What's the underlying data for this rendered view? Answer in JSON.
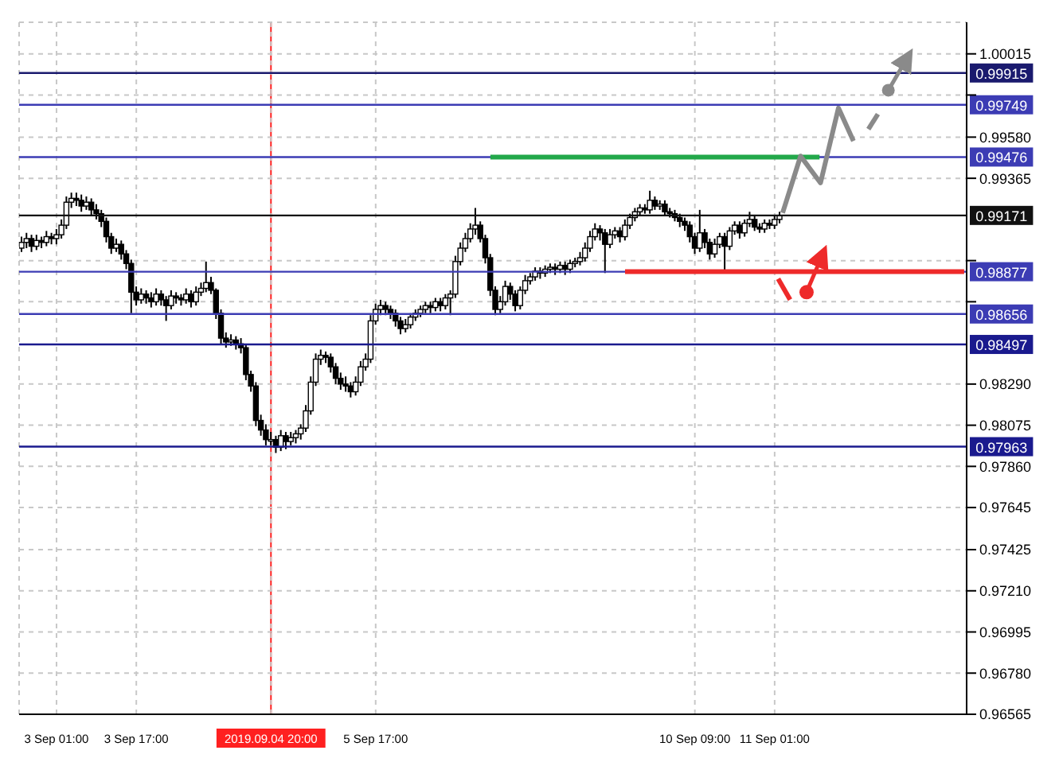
{
  "chart_data": {
    "type": "candlestick",
    "categories": [
      null,
      null,
      null,
      null,
      null,
      null,
      null,
      "3 Sep 01:00",
      null,
      null,
      null,
      null,
      null,
      null,
      null,
      null,
      null,
      null,
      null,
      null,
      null,
      null,
      null,
      "3 Sep 17:00",
      null,
      null,
      null,
      null,
      null,
      null,
      null,
      null,
      null,
      null,
      null,
      null,
      null,
      null,
      null,
      null,
      null,
      null,
      null,
      null,
      null,
      null,
      null,
      null,
      null,
      null,
      "2019.09.04 20:00",
      null,
      null,
      null,
      null,
      null,
      null,
      null,
      null,
      null,
      null,
      null,
      null,
      null,
      null,
      null,
      null,
      null,
      null,
      null,
      null,
      "5 Sep 17:00",
      null,
      null,
      null,
      null,
      null,
      null,
      null,
      null,
      null,
      null,
      null,
      null,
      null,
      null,
      null,
      null,
      null,
      null,
      null,
      null,
      null,
      null,
      null,
      null,
      null,
      null,
      null,
      null,
      null,
      null,
      null,
      null,
      null,
      null,
      null,
      null,
      null,
      null,
      null,
      null,
      null,
      null,
      null,
      null,
      null,
      null,
      null,
      null,
      null,
      null,
      null,
      null,
      null,
      null,
      null,
      null,
      null,
      null,
      null,
      null,
      null,
      null,
      null,
      "10 Sep 09:00",
      null,
      null,
      null,
      null,
      null,
      null,
      null,
      null,
      null,
      null,
      null,
      null,
      null,
      null,
      null,
      "11 Sep 01:00",
      null,
      null,
      null,
      null,
      null,
      null,
      null,
      null,
      null,
      null,
      null,
      null,
      null,
      null,
      null,
      null,
      null,
      null,
      null,
      null,
      null,
      null,
      null,
      null,
      null,
      null,
      null,
      null,
      null,
      null,
      null,
      null,
      null,
      null,
      null,
      null,
      null,
      null
    ],
    "ohlc": [
      [
        0.99,
        0.9906,
        0.9898,
        0.9903
      ],
      [
        0.9903,
        0.9908,
        0.99,
        0.9905
      ],
      [
        0.9905,
        0.9907,
        0.9898,
        0.9901
      ],
      [
        0.9901,
        0.9907,
        0.9899,
        0.9904
      ],
      [
        0.9904,
        0.9906,
        0.99,
        0.9903
      ],
      [
        0.9903,
        0.9909,
        0.9901,
        0.9906
      ],
      [
        0.9906,
        0.9908,
        0.9902,
        0.9905
      ],
      [
        0.9905,
        0.991,
        0.9902,
        0.9907
      ],
      [
        0.9907,
        0.9915,
        0.9905,
        0.9912
      ],
      [
        0.9912,
        0.9927,
        0.991,
        0.9924
      ],
      [
        0.9924,
        0.9929,
        0.9921,
        0.9926
      ],
      [
        0.9926,
        0.9929,
        0.9922,
        0.9925
      ],
      [
        0.9925,
        0.9928,
        0.9919,
        0.9922
      ],
      [
        0.9922,
        0.9927,
        0.992,
        0.9924
      ],
      [
        0.9924,
        0.9926,
        0.9917,
        0.992
      ],
      [
        0.992,
        0.9923,
        0.9915,
        0.9918
      ],
      [
        0.9918,
        0.992,
        0.9911,
        0.9914
      ],
      [
        0.9914,
        0.9916,
        0.9903,
        0.9906
      ],
      [
        0.9906,
        0.9908,
        0.9897,
        0.99
      ],
      [
        0.99,
        0.9905,
        0.9898,
        0.9902
      ],
      [
        0.9902,
        0.9904,
        0.9894,
        0.9897
      ],
      [
        0.9897,
        0.9899,
        0.9889,
        0.9892
      ],
      [
        0.9892,
        0.9894,
        0.9866,
        0.9877
      ],
      [
        0.9877,
        0.988,
        0.987,
        0.9873
      ],
      [
        0.9873,
        0.9879,
        0.9871,
        0.9876
      ],
      [
        0.9876,
        0.9878,
        0.9871,
        0.9874
      ],
      [
        0.9874,
        0.9877,
        0.9869,
        0.9872
      ],
      [
        0.9872,
        0.9879,
        0.987,
        0.9876
      ],
      [
        0.9876,
        0.9878,
        0.987,
        0.9873
      ],
      [
        0.9873,
        0.9875,
        0.9862,
        0.987
      ],
      [
        0.987,
        0.9878,
        0.9868,
        0.9875
      ],
      [
        0.9875,
        0.9877,
        0.9871,
        0.9874
      ],
      [
        0.9874,
        0.9876,
        0.987,
        0.9873
      ],
      [
        0.9873,
        0.9879,
        0.9871,
        0.9876
      ],
      [
        0.9876,
        0.9878,
        0.9869,
        0.9872
      ],
      [
        0.9872,
        0.988,
        0.987,
        0.9877
      ],
      [
        0.9877,
        0.9882,
        0.9875,
        0.9879
      ],
      [
        0.9879,
        0.9893,
        0.9877,
        0.9882
      ],
      [
        0.9882,
        0.9885,
        0.9876,
        0.9878
      ],
      [
        0.9878,
        0.9879,
        0.9863,
        0.9866
      ],
      [
        0.9866,
        0.9868,
        0.985,
        0.9853
      ],
      [
        0.9853,
        0.9856,
        0.9848,
        0.9851
      ],
      [
        0.9851,
        0.9855,
        0.9849,
        0.9852
      ],
      [
        0.9852,
        0.9854,
        0.9847,
        0.985
      ],
      [
        0.985,
        0.9853,
        0.9845,
        0.9848
      ],
      [
        0.9848,
        0.985,
        0.9831,
        0.9834
      ],
      [
        0.9834,
        0.9836,
        0.9825,
        0.9828
      ],
      [
        0.9828,
        0.983,
        0.9807,
        0.981
      ],
      [
        0.981,
        0.9813,
        0.9802,
        0.9805
      ],
      [
        0.9805,
        0.9808,
        0.9797,
        0.98
      ],
      [
        0.98,
        0.9804,
        0.9797,
        0.98
      ],
      [
        0.98,
        0.9802,
        0.9793,
        0.9796
      ],
      [
        0.9796,
        0.9805,
        0.9794,
        0.9802
      ],
      [
        0.9802,
        0.9804,
        0.9795,
        0.9799
      ],
      [
        0.9799,
        0.9804,
        0.9797,
        0.9801
      ],
      [
        0.9801,
        0.9805,
        0.9798,
        0.9803
      ],
      [
        0.9803,
        0.9808,
        0.98,
        0.9806
      ],
      [
        0.9806,
        0.9818,
        0.9804,
        0.9815
      ],
      [
        0.9815,
        0.9833,
        0.9813,
        0.983
      ],
      [
        0.983,
        0.9845,
        0.9828,
        0.9842
      ],
      [
        0.9842,
        0.9847,
        0.9839,
        0.9844
      ],
      [
        0.9844,
        0.9846,
        0.984,
        0.9843
      ],
      [
        0.9843,
        0.9845,
        0.9835,
        0.9838
      ],
      [
        0.9838,
        0.984,
        0.9829,
        0.9832
      ],
      [
        0.9832,
        0.9835,
        0.9826,
        0.9829
      ],
      [
        0.9829,
        0.9833,
        0.9825,
        0.9828
      ],
      [
        0.9828,
        0.983,
        0.9822,
        0.9825
      ],
      [
        0.9825,
        0.9833,
        0.9823,
        0.983
      ],
      [
        0.983,
        0.9841,
        0.9828,
        0.9838
      ],
      [
        0.9838,
        0.9845,
        0.9836,
        0.9842
      ],
      [
        0.9842,
        0.9865,
        0.984,
        0.9862
      ],
      [
        0.9862,
        0.9871,
        0.986,
        0.9868
      ],
      [
        0.9868,
        0.9873,
        0.9865,
        0.987
      ],
      [
        0.987,
        0.9872,
        0.9865,
        0.9868
      ],
      [
        0.9868,
        0.987,
        0.9863,
        0.9866
      ],
      [
        0.9866,
        0.9868,
        0.9859,
        0.9862
      ],
      [
        0.9862,
        0.9864,
        0.9855,
        0.9858
      ],
      [
        0.9858,
        0.9863,
        0.9856,
        0.986
      ],
      [
        0.986,
        0.9866,
        0.9858,
        0.9864
      ],
      [
        0.9864,
        0.9868,
        0.9862,
        0.9866
      ],
      [
        0.9866,
        0.987,
        0.9864,
        0.9868
      ],
      [
        0.9868,
        0.9872,
        0.9866,
        0.987
      ],
      [
        0.987,
        0.9872,
        0.9866,
        0.9869
      ],
      [
        0.9869,
        0.9874,
        0.9867,
        0.9872
      ],
      [
        0.9872,
        0.9874,
        0.9867,
        0.987
      ],
      [
        0.987,
        0.9876,
        0.9868,
        0.9874
      ],
      [
        0.9874,
        0.9878,
        0.9865,
        0.9876
      ],
      [
        0.9876,
        0.9896,
        0.9874,
        0.9893
      ],
      [
        0.9893,
        0.9903,
        0.9891,
        0.99
      ],
      [
        0.99,
        0.9908,
        0.9898,
        0.9905
      ],
      [
        0.9905,
        0.9913,
        0.9903,
        0.991
      ],
      [
        0.991,
        0.9921,
        0.9907,
        0.9912
      ],
      [
        0.9912,
        0.9914,
        0.9903,
        0.9905
      ],
      [
        0.9905,
        0.9907,
        0.9892,
        0.9895
      ],
      [
        0.9895,
        0.9897,
        0.9875,
        0.9878
      ],
      [
        0.9878,
        0.988,
        0.9865,
        0.9868
      ],
      [
        0.9868,
        0.9875,
        0.9866,
        0.9872
      ],
      [
        0.9872,
        0.9883,
        0.987,
        0.988
      ],
      [
        0.988,
        0.9882,
        0.9873,
        0.9876
      ],
      [
        0.9876,
        0.9878,
        0.9867,
        0.987
      ],
      [
        0.987,
        0.988,
        0.9868,
        0.9878
      ],
      [
        0.9878,
        0.9886,
        0.9876,
        0.9883
      ],
      [
        0.9883,
        0.9887,
        0.9881,
        0.9885
      ],
      [
        0.9885,
        0.989,
        0.9883,
        0.9888
      ],
      [
        0.9888,
        0.989,
        0.9884,
        0.9887
      ],
      [
        0.9887,
        0.9891,
        0.9885,
        0.9889
      ],
      [
        0.9889,
        0.9892,
        0.9887,
        0.989
      ],
      [
        0.989,
        0.9892,
        0.9886,
        0.9889
      ],
      [
        0.9889,
        0.9893,
        0.9887,
        0.9891
      ],
      [
        0.9891,
        0.9893,
        0.9886,
        0.9889
      ],
      [
        0.9889,
        0.9894,
        0.9887,
        0.9892
      ],
      [
        0.9892,
        0.9895,
        0.989,
        0.9893
      ],
      [
        0.9893,
        0.9898,
        0.9891,
        0.9895
      ],
      [
        0.9895,
        0.9903,
        0.9893,
        0.99
      ],
      [
        0.99,
        0.9909,
        0.9898,
        0.9906
      ],
      [
        0.9906,
        0.9913,
        0.9904,
        0.991
      ],
      [
        0.991,
        0.9912,
        0.9904,
        0.9908
      ],
      [
        0.9908,
        0.991,
        0.9887,
        0.9902
      ],
      [
        0.9902,
        0.991,
        0.99,
        0.9907
      ],
      [
        0.9907,
        0.9911,
        0.9905,
        0.9909
      ],
      [
        0.9909,
        0.9911,
        0.9903,
        0.9906
      ],
      [
        0.9906,
        0.9915,
        0.9904,
        0.9912
      ],
      [
        0.9912,
        0.9918,
        0.991,
        0.9916
      ],
      [
        0.9916,
        0.9921,
        0.9914,
        0.9919
      ],
      [
        0.9919,
        0.9923,
        0.9917,
        0.9921
      ],
      [
        0.9921,
        0.9923,
        0.9918,
        0.992
      ],
      [
        0.992,
        0.993,
        0.9918,
        0.9925
      ],
      [
        0.9925,
        0.9927,
        0.992,
        0.9922
      ],
      [
        0.9922,
        0.9925,
        0.992,
        0.9923
      ],
      [
        0.9923,
        0.9925,
        0.9917,
        0.9919
      ],
      [
        0.9919,
        0.9921,
        0.9916,
        0.9918
      ],
      [
        0.9918,
        0.992,
        0.9914,
        0.9916
      ],
      [
        0.9916,
        0.9918,
        0.9911,
        0.9914
      ],
      [
        0.9914,
        0.9916,
        0.9909,
        0.9912
      ],
      [
        0.9912,
        0.9914,
        0.9903,
        0.9906
      ],
      [
        0.9906,
        0.9908,
        0.9897,
        0.99
      ],
      [
        0.99,
        0.992,
        0.9898,
        0.9908
      ],
      [
        0.9908,
        0.991,
        0.99,
        0.9903
      ],
      [
        0.9903,
        0.9905,
        0.9894,
        0.9897
      ],
      [
        0.9897,
        0.9905,
        0.9895,
        0.9902
      ],
      [
        0.9902,
        0.9908,
        0.99,
        0.9906
      ],
      [
        0.9906,
        0.9908,
        0.9887,
        0.9901
      ],
      [
        0.9901,
        0.9911,
        0.9899,
        0.9909
      ],
      [
        0.9909,
        0.9914,
        0.9907,
        0.9912
      ],
      [
        0.9912,
        0.9914,
        0.9905,
        0.9908
      ],
      [
        0.9908,
        0.9915,
        0.9906,
        0.9913
      ],
      [
        0.9913,
        0.9919,
        0.9911,
        0.9915
      ],
      [
        0.9915,
        0.9917,
        0.9909,
        0.9911
      ],
      [
        0.9911,
        0.9913,
        0.9908,
        0.991
      ],
      [
        0.991,
        0.9915,
        0.9908,
        0.9913
      ],
      [
        0.9913,
        0.9915,
        0.991,
        0.9912
      ],
      [
        0.9912,
        0.9917,
        0.991,
        0.9915
      ],
      [
        0.9915,
        0.9919,
        0.9913,
        0.9917
      ],
      null,
      null,
      null,
      null,
      null,
      null,
      null,
      null,
      null,
      null,
      null,
      null,
      null,
      null,
      null,
      null,
      null,
      null,
      null,
      null,
      null,
      null,
      null,
      null,
      null,
      null,
      null,
      null,
      null,
      null,
      null,
      null,
      null,
      null,
      null,
      null,
      null
    ],
    "series": [
      {
        "type": "line",
        "color": "#22a84a",
        "values": [
          null,
          null,
          null,
          null,
          null,
          null,
          null,
          null,
          null,
          null,
          null,
          null,
          null,
          null,
          null,
          null,
          null,
          null,
          null,
          null,
          null,
          null,
          null,
          null,
          null,
          null,
          null,
          null,
          null,
          null,
          null,
          null,
          null,
          null,
          null,
          null,
          null,
          null,
          null,
          null,
          null,
          null,
          null,
          null,
          null,
          null,
          null,
          null,
          null,
          null,
          null,
          null,
          null,
          null,
          null,
          null,
          null,
          null,
          null,
          null,
          null,
          null,
          null,
          null,
          null,
          null,
          null,
          null,
          null,
          null,
          null,
          null,
          null,
          null,
          null,
          null,
          null,
          null,
          null,
          null,
          null,
          null,
          null,
          null,
          null,
          null,
          null,
          null,
          null,
          null,
          null,
          null,
          null,
          null,
          0.99476,
          0.99476,
          0.99476,
          0.99476,
          0.99476,
          0.99476,
          0.99476,
          0.99476,
          0.99476,
          0.99476,
          0.99476,
          0.99476,
          0.99476,
          0.99476,
          0.99476,
          0.99476,
          0.99476,
          0.99476,
          0.99476,
          0.99476,
          0.99476,
          0.99476,
          0.99476,
          0.99476,
          0.99476,
          0.99476,
          0.99476,
          0.99476,
          0.99476,
          0.99476,
          0.99476,
          0.99476,
          0.99476,
          0.99476,
          0.99476,
          0.99476,
          0.99476,
          0.99476,
          0.99476,
          0.99476,
          0.99476,
          0.99476,
          0.99476,
          0.99476,
          0.99476,
          0.99476,
          0.99476,
          0.99476,
          0.99476,
          0.99476,
          0.99476,
          0.99476,
          0.99476,
          0.99476,
          0.99476,
          0.99476,
          0.99476,
          0.99476,
          0.99476,
          0.99476,
          0.99476,
          0.99476,
          0.99476,
          0.99476,
          0.99476,
          0.99476,
          0.99476,
          null,
          null,
          null,
          null,
          null,
          null,
          null,
          null,
          null,
          null,
          null,
          null,
          null,
          null,
          null,
          null,
          null,
          null,
          null,
          null,
          null,
          null,
          null,
          null,
          null,
          null,
          null,
          null,
          null
        ]
      },
      {
        "type": "line",
        "color": "#ee2a2a",
        "values": [
          null,
          null,
          null,
          null,
          null,
          null,
          null,
          null,
          null,
          null,
          null,
          null,
          null,
          null,
          null,
          null,
          null,
          null,
          null,
          null,
          null,
          null,
          null,
          null,
          null,
          null,
          null,
          null,
          null,
          null,
          null,
          null,
          null,
          null,
          null,
          null,
          null,
          null,
          null,
          null,
          null,
          null,
          null,
          null,
          null,
          null,
          null,
          null,
          null,
          null,
          null,
          null,
          null,
          null,
          null,
          null,
          null,
          null,
          null,
          null,
          null,
          null,
          null,
          null,
          null,
          null,
          null,
          null,
          null,
          null,
          null,
          null,
          null,
          null,
          null,
          null,
          null,
          null,
          null,
          null,
          null,
          null,
          null,
          null,
          null,
          null,
          null,
          null,
          null,
          null,
          null,
          null,
          null,
          null,
          null,
          null,
          null,
          null,
          null,
          null,
          null,
          null,
          null,
          null,
          null,
          null,
          null,
          null,
          null,
          null,
          null,
          null,
          null,
          null,
          null,
          null,
          null,
          null,
          null,
          null,
          null,
          0.98877,
          0.98877,
          0.98877,
          0.98877,
          0.98877,
          0.98877,
          0.98877,
          0.98877,
          0.98877,
          0.98877,
          0.98877,
          0.98877,
          0.98877,
          0.98877,
          0.98877,
          0.98877,
          0.98877,
          0.98877,
          0.98877,
          0.98877,
          0.98877,
          0.98877,
          0.98877,
          0.98877,
          0.98877,
          0.98877,
          0.98877,
          0.98877,
          0.98877,
          0.98877,
          0.98877,
          0.98877,
          0.98877,
          0.98877,
          0.98877,
          0.98877,
          0.98877,
          0.98877,
          0.98877,
          0.98877,
          0.98877,
          0.98877,
          0.98877,
          0.98877,
          0.98877,
          0.98877,
          0.98877,
          0.98877,
          0.98877,
          0.98877,
          0.98877,
          0.98877,
          0.98877,
          0.98877,
          0.98877,
          0.98877,
          0.98877,
          0.98877,
          0.98877,
          0.98877,
          0.98877,
          0.98877,
          0.98877,
          0.98877,
          0.98877,
          0.98877,
          0.98877,
          0.98877,
          0.98877
        ]
      }
    ],
    "ylim": [
      0.96565,
      1.0018
    ],
    "yticks": [
      1.00015,
      {
        "value": 0.998,
        "label": null
      },
      {
        "value": 0.9958,
        "label": "0.99580"
      },
      0.99365,
      {
        "value": 0.98935,
        "label": null
      },
      {
        "value": 0.9872,
        "label": null
      },
      {
        "value": 0.9829,
        "label": "0.98290"
      },
      0.98075,
      {
        "value": 0.9786,
        "label": "0.97860"
      },
      0.97645,
      0.97425,
      {
        "value": 0.9721,
        "label": "0.97210"
      },
      0.96995,
      {
        "value": 0.9678,
        "label": "0.96780"
      },
      0.96565
    ],
    "ref_lines": [
      {
        "axis": "y",
        "value": 0.99915,
        "label": "0.99915",
        "color": "#1a1a6e"
      },
      {
        "axis": "y",
        "value": 0.99749,
        "label": "0.99749",
        "color": "#3c3cb4"
      },
      {
        "axis": "y",
        "value": 0.99476,
        "label": "0.99476",
        "color": "#3c3cb4"
      },
      {
        "axis": "y",
        "value": 0.99171,
        "label": "0.99171",
        "color": "#111111"
      },
      {
        "axis": "y",
        "value": 0.98877,
        "label": "0.98877",
        "color": "#3c3cb4"
      },
      {
        "axis": "y",
        "value": 0.98656,
        "label": "0.98656",
        "color": "#3c3cb4"
      },
      {
        "axis": "y",
        "value": 0.98497,
        "label": "0.98497",
        "color": "#1a1a8e"
      },
      {
        "axis": "y",
        "value": 0.97963,
        "label": "0.97963",
        "color": "#1a1a8e"
      },
      {
        "axis": "x",
        "value": "2019.09.04 20:00",
        "color": "#ff2020"
      }
    ],
    "grid": true
  }
}
